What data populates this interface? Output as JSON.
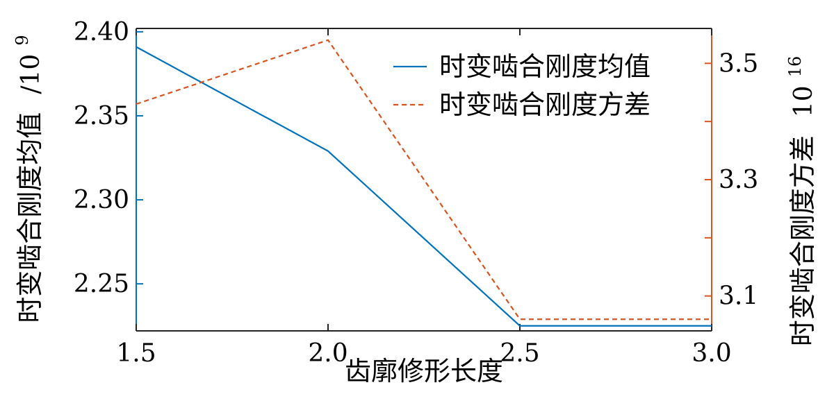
{
  "chart_data": {
    "type": "line",
    "x": [
      1.5,
      2.0,
      2.5,
      3.0
    ],
    "xlabel": "齿廓修形长度",
    "xlim": [
      1.5,
      3.0
    ],
    "x_ticks": [
      "1.5",
      "2.0",
      "2.5",
      "3.0"
    ],
    "left_axis": {
      "label": "时变啮合刚度均值",
      "unit_prefix": "/10",
      "unit_exp": "9",
      "ylim": [
        2.222,
        2.402
      ],
      "ticks": [
        "2.25",
        "2.30",
        "2.35",
        "2.40"
      ],
      "tick_values": [
        2.25,
        2.3,
        2.35,
        2.4
      ],
      "color": "#000000"
    },
    "right_axis": {
      "label": "时变啮合刚度方差",
      "unit_prefix": "10",
      "unit_exp": "16",
      "ylim": [
        3.04,
        3.56
      ],
      "ticks": [
        "3.1",
        "3.3",
        "3.5"
      ],
      "tick_values": [
        3.1,
        3.3,
        3.5
      ],
      "color": "#d9531e"
    },
    "series": [
      {
        "name": "时变啮合刚度均值",
        "axis": "left",
        "values": [
          2.391,
          2.329,
          2.225,
          2.225
        ],
        "color": "#0072bd",
        "style": "solid"
      },
      {
        "name": "时变啮合刚度方差",
        "axis": "right",
        "values": [
          3.43,
          3.54,
          3.06,
          3.06
        ],
        "color": "#d9531e",
        "style": "dashed"
      }
    ],
    "legend_position": "top-right",
    "grid": false
  }
}
